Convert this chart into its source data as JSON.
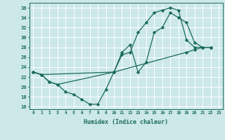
{
  "xlabel": "Humidex (Indice chaleur)",
  "bg_color": "#cce8e8",
  "line_color": "#1a6b5a",
  "grid_color": "#ffffff",
  "xlim": [
    -0.5,
    23.5
  ],
  "ylim": [
    15.5,
    37
  ],
  "xticks": [
    0,
    1,
    2,
    3,
    4,
    5,
    6,
    7,
    8,
    9,
    10,
    11,
    12,
    13,
    14,
    15,
    16,
    17,
    18,
    19,
    20,
    21,
    22,
    23
  ],
  "yticks": [
    16,
    18,
    20,
    22,
    24,
    26,
    28,
    30,
    32,
    34,
    36
  ],
  "line1_x": [
    0,
    1,
    2,
    3,
    4,
    5,
    6,
    7,
    8,
    9,
    10,
    11,
    12,
    13,
    14,
    15,
    16,
    17,
    18,
    19,
    20,
    21,
    22
  ],
  "line1_y": [
    23,
    22.5,
    21,
    20.5,
    19,
    18.5,
    17.5,
    16.5,
    16.5,
    19.5,
    23,
    26.5,
    27,
    31,
    33,
    35,
    35.5,
    36,
    35.5,
    29.5,
    28,
    28,
    28
  ],
  "line2_x": [
    0,
    1,
    2,
    3,
    10,
    11,
    12,
    13,
    14,
    15,
    16,
    17,
    18,
    19,
    20,
    21,
    22
  ],
  "line2_y": [
    23,
    22.5,
    21,
    20.5,
    23,
    27,
    28.5,
    23,
    25,
    31,
    32,
    35,
    34,
    33,
    29,
    28,
    28
  ],
  "line3_x": [
    0,
    1,
    10,
    19,
    20,
    21,
    22
  ],
  "line3_y": [
    23,
    22.5,
    23,
    27,
    27.5,
    28,
    28
  ]
}
